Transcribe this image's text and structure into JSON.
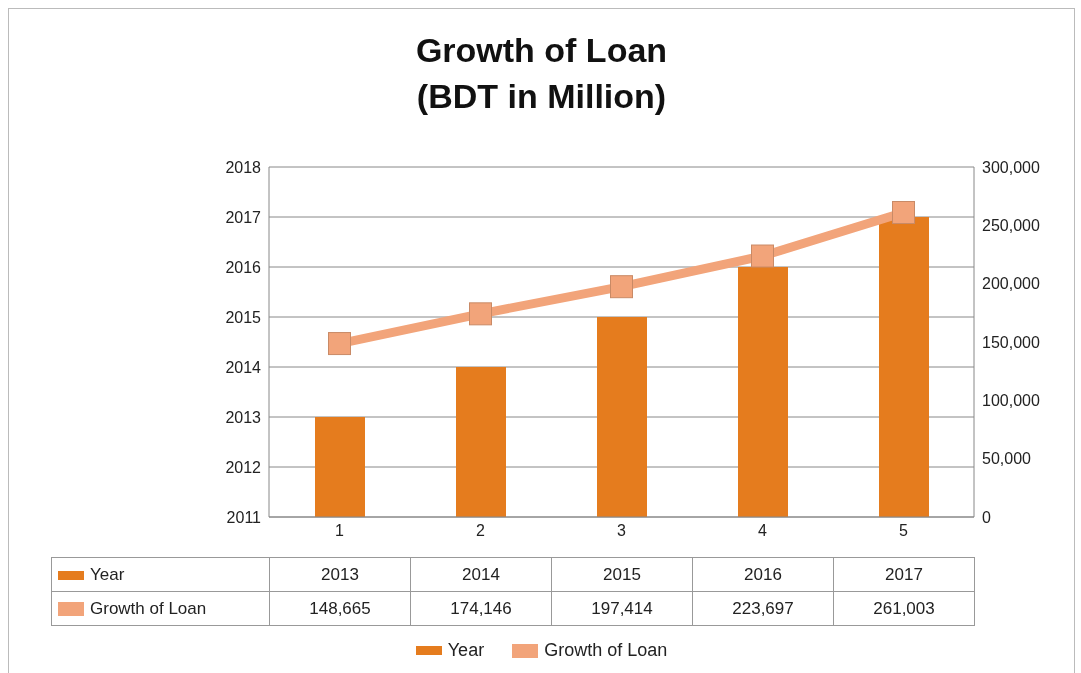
{
  "chart_data": {
    "type": "bar",
    "title": "Growth of Loan",
    "subtitle": "(BDT in Million)",
    "categories": [
      "1",
      "2",
      "3",
      "4",
      "5"
    ],
    "series": [
      {
        "name": "Year",
        "color": "#e57c1e",
        "values": [
          2013,
          2014,
          2015,
          2016,
          2017
        ],
        "value_labels": [
          "2013",
          "2014",
          "2015",
          "2016",
          "2017"
        ]
      },
      {
        "name": "Growth of Loan",
        "type": "line",
        "axis": "y2",
        "color": "#f2a47a",
        "marker": "square",
        "values": [
          148665,
          174146,
          197414,
          223697,
          261003
        ],
        "value_labels": [
          "148,665",
          "174,146",
          "197,414",
          "223,697",
          "261,003"
        ]
      }
    ],
    "ylim": [
      2011,
      2018
    ],
    "yticks": [
      2011,
      2012,
      2013,
      2014,
      2015,
      2016,
      2017,
      2018
    ],
    "y2lim": [
      0,
      300000
    ],
    "y2ticks": [
      0,
      {
        "value": 50000,
        "label": "50,000"
      },
      {
        "value": 100000,
        "label": "100,000"
      },
      {
        "value": 150000,
        "label": "150,000"
      },
      {
        "value": 200000,
        "label": "200,000"
      },
      {
        "value": 250000,
        "label": "250,000"
      },
      {
        "value": 300000,
        "label": "300,000"
      }
    ],
    "grid": "y",
    "legend": "bottom"
  }
}
